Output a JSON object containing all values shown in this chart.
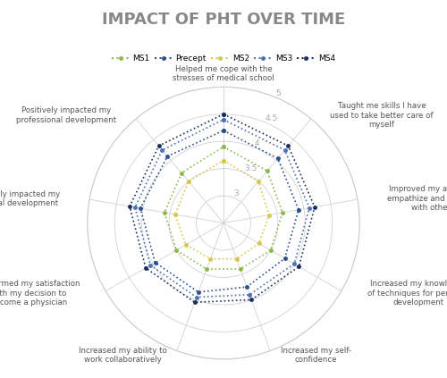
{
  "title": "IMPACT OF PHT OVER TIME",
  "categories": [
    "Helped me cope with the\nstresses of medical school",
    "Taught me skills I have\nused to take better care of\nmyself",
    "Improved my ability to\nempathize and connect\nwith others",
    "Increased my knowledge\nof techniques for personal\ndevelopment",
    "Increased my self-\nconfidence",
    "Increased my ability to\nwork collaboratively",
    "Confirmed my satisfaction\nwith my decision to\nbecome a physician",
    "Positively impacted my\npersonal development",
    "Positively impacted my\nprofessional development"
  ],
  "series": {
    "MS1": [
      3.9,
      3.75,
      3.6,
      3.5,
      3.4,
      3.4,
      3.5,
      3.6,
      3.7
    ],
    "Precept": [
      4.2,
      4.05,
      3.9,
      3.8,
      3.75,
      3.85,
      3.95,
      4.05,
      4.1
    ],
    "MS2": [
      3.65,
      3.5,
      3.35,
      3.25,
      3.2,
      3.2,
      3.3,
      3.4,
      3.5
    ],
    "MS3": [
      4.4,
      4.25,
      4.1,
      4.0,
      3.9,
      3.95,
      4.05,
      4.15,
      4.25
    ],
    "MS4": [
      4.5,
      4.35,
      4.2,
      4.1,
      4.0,
      4.05,
      4.15,
      4.25,
      4.35
    ]
  },
  "colors": {
    "MS1": "#8db84a",
    "Precept": "#2b4f8e",
    "MS2": "#d4c84a",
    "MS3": "#4a72b8",
    "MS4": "#1a2e5a"
  },
  "rmin": 2.5,
  "rmax": 5.0,
  "rticks": [
    3.0,
    3.5,
    4.0,
    4.5,
    5.0
  ],
  "rtick_labels": [
    "3",
    "3.5",
    "4",
    "4.5",
    "5"
  ],
  "background_color": "#ffffff",
  "title_color": "#888888",
  "title_fontsize": 13,
  "legend_order": [
    "MS1",
    "Precept",
    "MS2",
    "MS3",
    "MS4"
  ]
}
